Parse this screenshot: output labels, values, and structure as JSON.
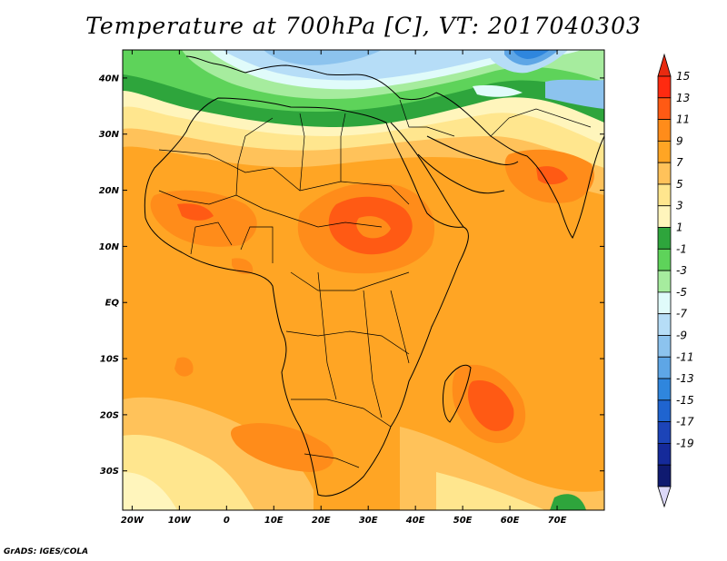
{
  "title": "Temperature at 700hPa [C], VT: 2017040303",
  "credit": "GrADS: IGES/COLA",
  "axes": {
    "lat_labels": [
      "40N",
      "30N",
      "20N",
      "10N",
      "EQ",
      "10S",
      "20S",
      "30S"
    ],
    "lat_values": [
      40,
      30,
      20,
      10,
      0,
      -10,
      -20,
      -30
    ],
    "lon_labels": [
      "20W",
      "10W",
      "0",
      "10E",
      "20E",
      "30E",
      "40E",
      "50E",
      "60E",
      "70E"
    ],
    "lon_values": [
      -20,
      -10,
      0,
      10,
      20,
      30,
      40,
      50,
      60,
      70
    ],
    "lon_range": [
      -22,
      80
    ],
    "lat_range": [
      -37,
      45
    ]
  },
  "colorbar": {
    "labels": [
      "15",
      "13",
      "11",
      "9",
      "7",
      "5",
      "3",
      "1",
      "-1",
      "-3",
      "-5",
      "-7",
      "-9",
      "-11",
      "-13",
      "-15",
      "-17",
      "-19"
    ],
    "colors": [
      "#ff2a10",
      "#ff5a14",
      "#ff8c1a",
      "#ffa524",
      "#ffc25a",
      "#ffe68e",
      "#fff5bc",
      "#2ea53c",
      "#5ed35a",
      "#a6ec9e",
      "#e0fbfa",
      "#b6ddf7",
      "#8cc3ee",
      "#5ea6e6",
      "#2f86dd",
      "#1f64d0",
      "#1c44b8",
      "#152a9a",
      "#0f1a70"
    ],
    "overflow_top_color": "#e82a10",
    "overflow_bottom_color": "#dcd8f8"
  }
}
